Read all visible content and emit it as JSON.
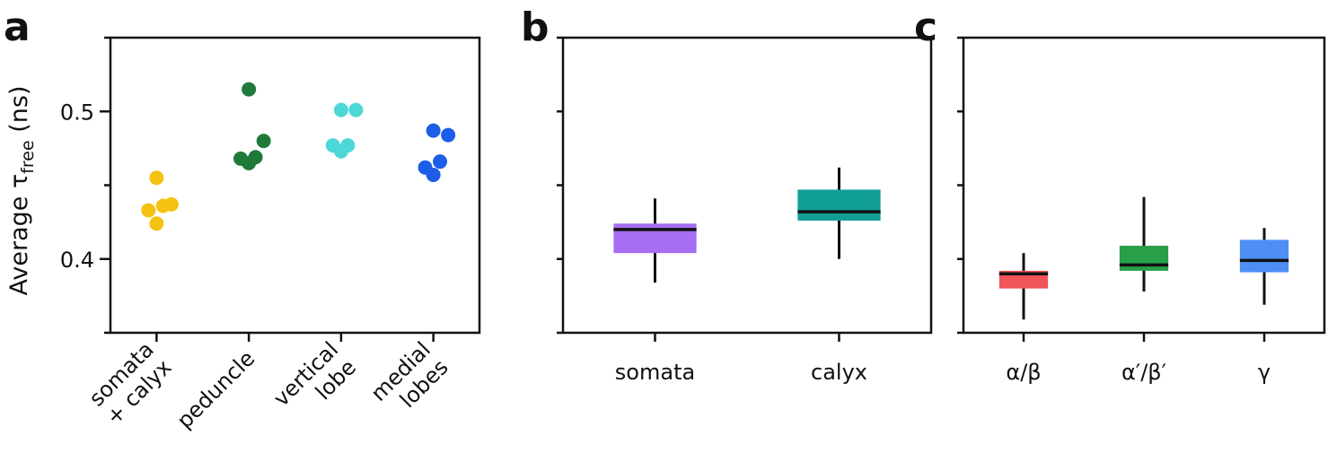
{
  "chart_data": [
    {
      "type": "strip",
      "panel_label": "a",
      "ylabel": {
        "text": "Average τ",
        "sub": "free",
        "after": " (ns)"
      },
      "categories": [
        [
          "somata",
          "+ calyx"
        ],
        [
          "peduncle"
        ],
        [
          "vertical",
          "lobe"
        ],
        [
          "medial",
          "lobes"
        ]
      ],
      "colors": [
        "#f5c211",
        "#1f7a3a",
        "#4dd8d8",
        "#1d5ee8"
      ],
      "values": [
        [
          0.455,
          0.437,
          0.436,
          0.433,
          0.424
        ],
        [
          0.515,
          0.48,
          0.469,
          0.468,
          0.465
        ],
        [
          0.501,
          0.501,
          0.477,
          0.477,
          0.473
        ],
        [
          0.487,
          0.484,
          0.466,
          0.462,
          0.457
        ]
      ],
      "ylim": [
        0.35,
        0.55
      ],
      "yticks": [
        0.4,
        0.5
      ],
      "minor_yticks": [
        0.35,
        0.45,
        0.55
      ]
    },
    {
      "type": "box",
      "panel_label": "b",
      "boxes": [
        {
          "name": "somata",
          "color": "#a66ef2",
          "whisker_low": 0.384,
          "q1": 0.404,
          "median": 0.42,
          "q3": 0.424,
          "whisker_high": 0.441
        },
        {
          "name": "calyx",
          "color": "#119e96",
          "whisker_low": 0.4,
          "q1": 0.426,
          "median": 0.432,
          "q3": 0.447,
          "whisker_high": 0.462
        }
      ],
      "ylim": [
        0.35,
        0.55
      ],
      "minor_yticks": [
        0.35,
        0.4,
        0.45,
        0.5,
        0.55
      ]
    },
    {
      "type": "box",
      "panel_label": "c",
      "boxes": [
        {
          "name": "α/β",
          "color": "#f0555a",
          "whisker_low": 0.359,
          "q1": 0.38,
          "median": 0.39,
          "q3": 0.392,
          "whisker_high": 0.404
        },
        {
          "name": "α′/β′",
          "color": "#28a048",
          "whisker_low": 0.378,
          "q1": 0.392,
          "median": 0.396,
          "q3": 0.409,
          "whisker_high": 0.442
        },
        {
          "name": "γ",
          "color": "#4d8ff5",
          "whisker_low": 0.369,
          "q1": 0.391,
          "median": 0.399,
          "q3": 0.413,
          "whisker_high": 0.421
        }
      ],
      "ylim": [
        0.35,
        0.55
      ],
      "minor_yticks": [
        0.35,
        0.4,
        0.45,
        0.5,
        0.55
      ]
    }
  ]
}
